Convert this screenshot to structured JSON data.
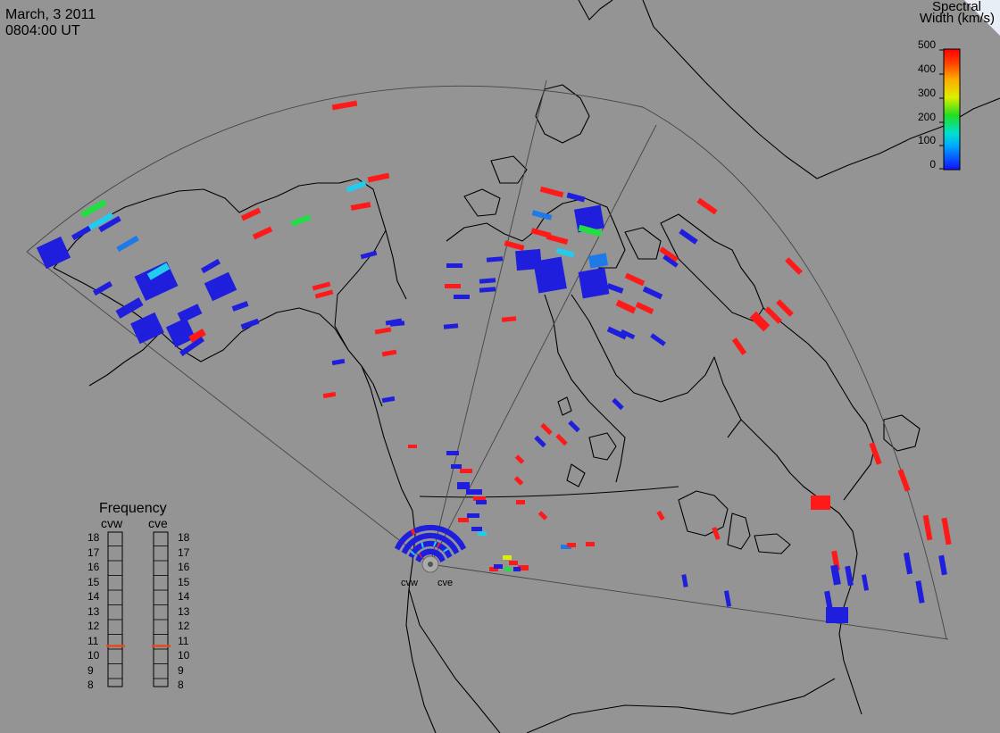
{
  "header": {
    "date": "March, 3 2011",
    "time": "0804:00 UT"
  },
  "colorbar": {
    "title_line1": "Spectral",
    "title_line2": "Width (km/s)",
    "ticks": [
      "500",
      "400",
      "300",
      "200",
      "100",
      "0"
    ]
  },
  "frequency_panel": {
    "title": "Frequency",
    "left_radar": "cvw",
    "right_radar": "cve",
    "ticks": [
      "18",
      "17",
      "16",
      "15",
      "14",
      "13",
      "12",
      "11",
      "10",
      "9",
      "8"
    ],
    "left_value_mhz": 10.7,
    "right_value_mhz": 10.7,
    "marker_color": "#e34a1c"
  },
  "radar_sites": {
    "west": "cvw",
    "east": "cve"
  },
  "colors": {
    "background": "#949494",
    "land_outline": "#000000",
    "fov_outline": "#555555",
    "low_width": "#1e1edc",
    "high_width": "#ff1a1a"
  }
}
